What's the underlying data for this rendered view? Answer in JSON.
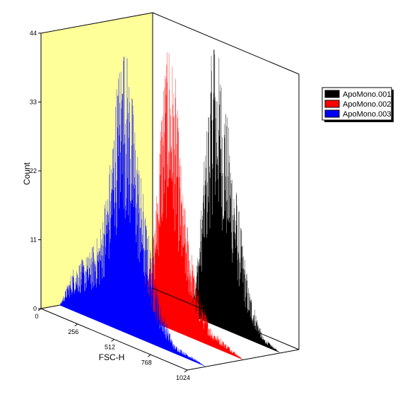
{
  "chart_data": {
    "type": "bar",
    "subtype": "3d-stacked-histogram",
    "title": "",
    "xlabel": "FSC-H",
    "ylabel": "Count",
    "xlim": [
      0,
      1024
    ],
    "ylim": [
      0,
      44
    ],
    "x_ticks": [
      0,
      256,
      512,
      768,
      1024
    ],
    "x_tick_labels": [
      "0",
      "256",
      "512",
      "768",
      "1024"
    ],
    "y_ticks": [
      0,
      11,
      22,
      33,
      44
    ],
    "y_tick_labels": [
      "0",
      "11",
      "22",
      "33",
      "44"
    ],
    "grid": false,
    "back_wall_color": "#ffff99",
    "legend_position": "right",
    "series": [
      {
        "name": "ApoMono.001",
        "color": "#000000",
        "depth_index": 2,
        "profile_x": [
          0,
          200,
          300,
          400,
          450,
          500,
          550,
          600,
          700,
          800,
          900,
          1024
        ],
        "profile_y": [
          0,
          0,
          0,
          2,
          8,
          20,
          32,
          30,
          18,
          6,
          1,
          0
        ],
        "peak_x": 560,
        "peak_count": 44
      },
      {
        "name": "ApoMono.002",
        "color": "#ff0000",
        "depth_index": 1,
        "profile_x": [
          0,
          100,
          200,
          300,
          400,
          450,
          500,
          550,
          600,
          700,
          800,
          1024
        ],
        "profile_y": [
          0,
          0,
          1,
          3,
          10,
          25,
          33,
          28,
          16,
          6,
          2,
          0
        ],
        "peak_x": 490,
        "peak_count": 40
      },
      {
        "name": "ApoMono.003",
        "color": "#0000ff",
        "depth_index": 0,
        "profile_x": [
          0,
          100,
          200,
          280,
          350,
          400,
          450,
          500,
          600,
          700,
          800,
          1024
        ],
        "profile_y": [
          0,
          5,
          7,
          10,
          18,
          28,
          34,
          28,
          14,
          5,
          1,
          0
        ],
        "peak_x": 440,
        "peak_count": 38
      }
    ]
  }
}
